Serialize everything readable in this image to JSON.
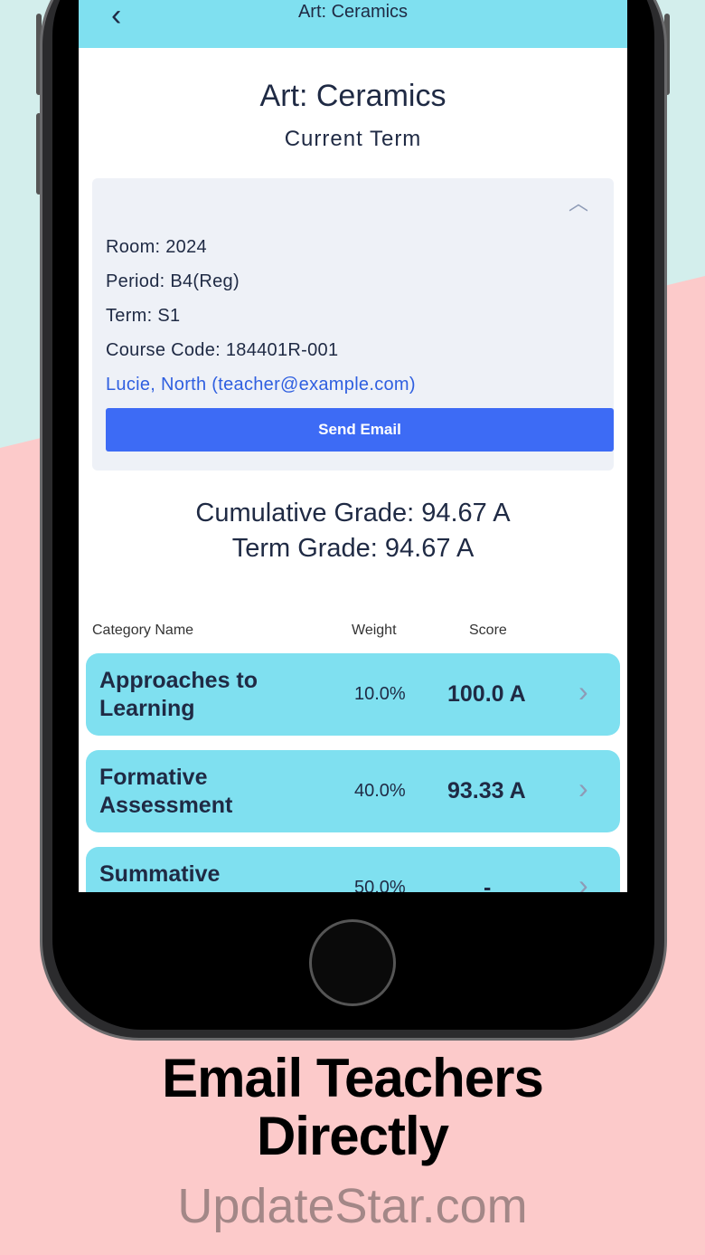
{
  "colors": {
    "teal_bg": "#d3eeec",
    "pink_bg": "#fccaca",
    "navbar": "#7fe0f0",
    "button": "#3d6bf5",
    "link": "#2f5fe0"
  },
  "nav": {
    "back_icon": "chevron-left-icon",
    "title": "Art: Ceramics"
  },
  "page": {
    "title": "Art: Ceramics",
    "subtitle": "Current Term"
  },
  "details": {
    "collapse_icon": "chevron-up-icon",
    "room": "Room: 2024",
    "period": "Period: B4(Reg)",
    "term": "Term: S1",
    "course_code": "Course Code: 184401R-001",
    "teacher": "Lucie, North (teacher@example.com)",
    "send_email": "Send Email"
  },
  "grades": {
    "cumulative": "Cumulative Grade: 94.67 A",
    "term": "Term Grade: 94.67 A"
  },
  "table": {
    "headers": [
      "Category Name",
      "Weight",
      "Score"
    ],
    "rows": [
      {
        "name": "Approaches to Learning",
        "weight": "10.0%",
        "score": "100.0 A"
      },
      {
        "name": "Formative Assessment",
        "weight": "40.0%",
        "score": "93.33 A"
      },
      {
        "name": "Summative",
        "weight": "50.0%",
        "score": "-"
      }
    ]
  },
  "caption": "Email Teachers Directly",
  "watermark": "UpdateStar.com"
}
